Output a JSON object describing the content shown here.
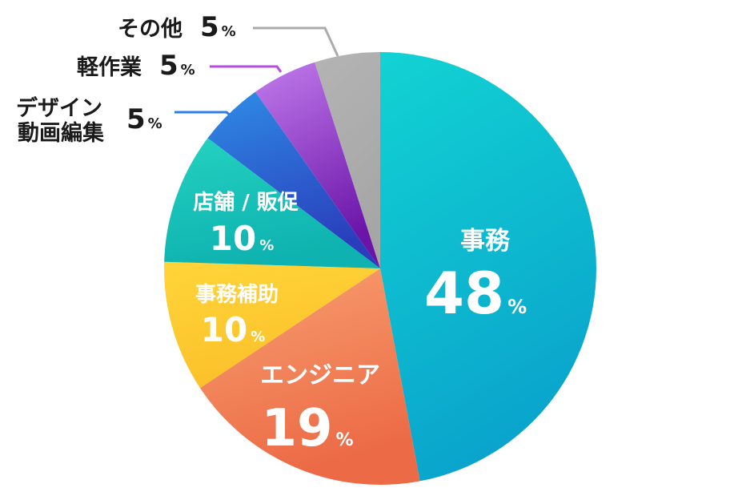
{
  "chart_data": {
    "type": "pie",
    "title": "",
    "percent_sign": "%",
    "slices": [
      {
        "label": "事務",
        "value": 48,
        "color_top": "#12D3D3",
        "color_bottom": "#0AA4CC",
        "label_position": "inside"
      },
      {
        "label": "エンジニア",
        "value": 19,
        "color_top": "#F8A070",
        "color_bottom": "#EC6A46",
        "label_position": "inside"
      },
      {
        "label": "事務補助",
        "value": 10,
        "color_top": "#FFD53A",
        "color_bottom": "#FBC02A",
        "label_position": "inside"
      },
      {
        "label": "店舗 / 販促",
        "value": 10,
        "color_top": "#24D2C0",
        "color_bottom": "#0EB2B0",
        "label_position": "inside"
      },
      {
        "label": "デザイン動画編集",
        "label_lines": [
          "デザイン",
          "動画編集"
        ],
        "value": 5,
        "color_top": "#2E8CE6",
        "color_bottom": "#2A3EBC",
        "leader_color": "#2E7FE0",
        "label_position": "outside"
      },
      {
        "label": "軽作業",
        "value": 5,
        "color_top": "#C27CEC",
        "color_bottom": "#6A14A8",
        "leader_color": "#B64FE0",
        "label_position": "outside"
      },
      {
        "label": "その他",
        "value": 5,
        "color_top": "#B4B4B4",
        "color_bottom": "#A6A6A6",
        "leader_color": "#ABABAB",
        "label_position": "outside"
      }
    ]
  }
}
